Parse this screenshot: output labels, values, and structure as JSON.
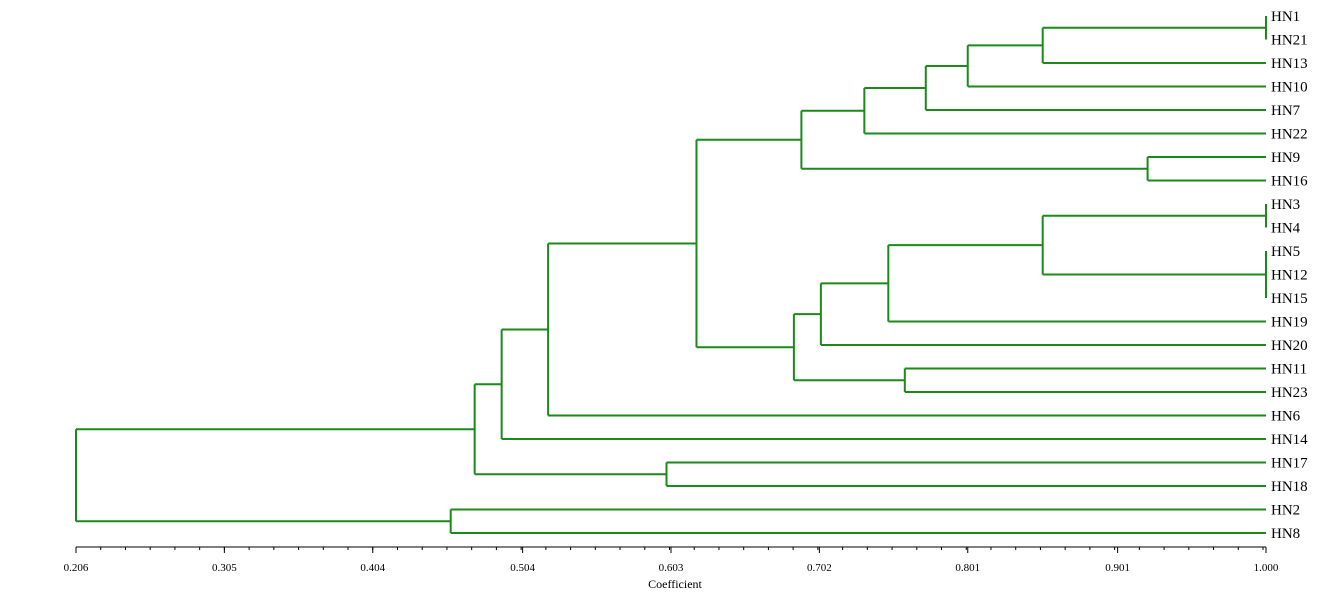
{
  "chart_data": {
    "type": "dendrogram",
    "xlabel": "Coefficient",
    "xlim": [
      0.206,
      1.0
    ],
    "ticks": [
      "0.206",
      "0.305",
      "0.404",
      "0.504",
      "0.603",
      "0.702",
      "0.801",
      "0.901",
      "1.000"
    ],
    "tick_values": [
      0.206,
      0.305,
      0.404,
      0.504,
      0.603,
      0.702,
      0.801,
      0.901,
      1.0
    ],
    "leaves": [
      "HN1",
      "HN21",
      "HN13",
      "HN10",
      "HN7",
      "HN22",
      "HN9",
      "HN16",
      "HN3",
      "HN4",
      "HN5",
      "HN12",
      "HN15",
      "HN19",
      "HN20",
      "HN11",
      "HN23",
      "HN6",
      "HN14",
      "HN17",
      "HN18",
      "HN2",
      "HN8"
    ],
    "merges": [
      {
        "members": [
          "HN1",
          "HN21"
        ],
        "height": 1.0
      },
      {
        "members": [
          "HN3",
          "HN4"
        ],
        "height": 1.0
      },
      {
        "members": [
          "HN5",
          "HN12",
          "HN15"
        ],
        "height": 1.0
      },
      {
        "members": [
          "HN1",
          "HN21",
          "HN13"
        ],
        "height": 0.851
      },
      {
        "members": [
          "HN1",
          "HN21",
          "HN13",
          "HN10"
        ],
        "height": 0.801
      },
      {
        "members": [
          "HN1",
          "HN21",
          "HN13",
          "HN10",
          "HN7"
        ],
        "height": 0.773
      },
      {
        "members": [
          "HN1",
          "HN21",
          "HN13",
          "HN10",
          "HN7",
          "HN22"
        ],
        "height": 0.732
      },
      {
        "members": [
          "HN9",
          "HN16"
        ],
        "height": 0.921
      },
      {
        "members": [
          "HN1",
          "HN21",
          "HN13",
          "HN10",
          "HN7",
          "HN22",
          "HN9",
          "HN16"
        ],
        "height": 0.69
      },
      {
        "members": [
          "HN3",
          "HN4",
          "HN5",
          "HN12",
          "HN15"
        ],
        "height": 0.851
      },
      {
        "members": [
          "HN3",
          "HN4",
          "HN5",
          "HN12",
          "HN15",
          "HN19"
        ],
        "height": 0.748
      },
      {
        "members": [
          "HN3",
          "HN4",
          "HN5",
          "HN12",
          "HN15",
          "HN19",
          "HN20"
        ],
        "height": 0.703
      },
      {
        "members": [
          "HN11",
          "HN23"
        ],
        "height": 0.759
      },
      {
        "members": [
          "HN3",
          "HN4",
          "HN5",
          "HN12",
          "HN15",
          "HN19",
          "HN20",
          "HN11",
          "HN23"
        ],
        "height": 0.685
      },
      {
        "members": [
          "HN1",
          "HN21",
          "HN13",
          "HN10",
          "HN7",
          "HN22",
          "HN9",
          "HN16",
          "HN3",
          "HN4",
          "HN5",
          "HN12",
          "HN15",
          "HN19",
          "HN20",
          "HN11",
          "HN23"
        ],
        "height": 0.62
      },
      {
        "members": [
          "…",
          "HN6"
        ],
        "height": 0.521
      },
      {
        "members": [
          "…",
          "HN6",
          "HN14"
        ],
        "height": 0.49
      },
      {
        "members": [
          "HN17",
          "HN18"
        ],
        "height": 0.6
      },
      {
        "members": [
          "…",
          "HN14",
          "HN17",
          "HN18"
        ],
        "height": 0.472
      },
      {
        "members": [
          "HN2",
          "HN8"
        ],
        "height": 0.456
      },
      {
        "members": [
          "all"
        ],
        "height": 0.206
      }
    ],
    "line_color": "#1a8a1a",
    "axis_color": "#000000"
  }
}
